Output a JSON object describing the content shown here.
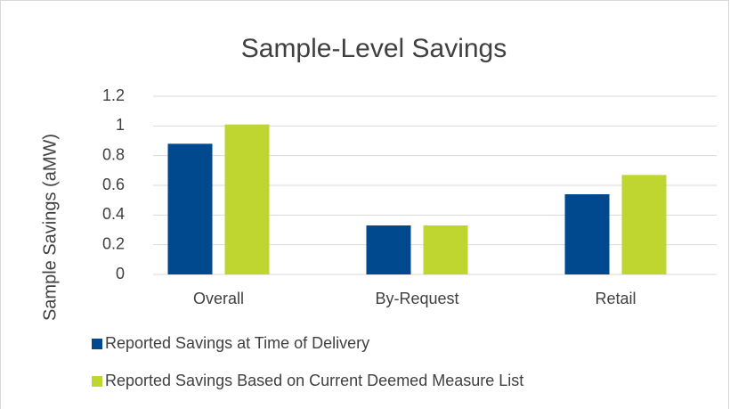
{
  "chart_data": {
    "type": "bar",
    "title": "Sample-Level Savings",
    "y_label": "Sample Savings (aMW)",
    "categories": [
      "Overall",
      "By-Request",
      "Retail"
    ],
    "series": [
      {
        "name": "Reported Savings at Time of Delivery",
        "color": "#00498f",
        "values": [
          0.88,
          0.33,
          0.54
        ]
      },
      {
        "name": "Reported Savings Based on Current Deemed Measure List",
        "color": "#bed62f",
        "values": [
          1.01,
          0.33,
          0.67
        ]
      }
    ],
    "ylim": [
      0,
      1.2
    ],
    "yticks": [
      0,
      0.2,
      0.4,
      0.6,
      0.8,
      1,
      1.2
    ],
    "grid": true,
    "legend": "bottom"
  }
}
